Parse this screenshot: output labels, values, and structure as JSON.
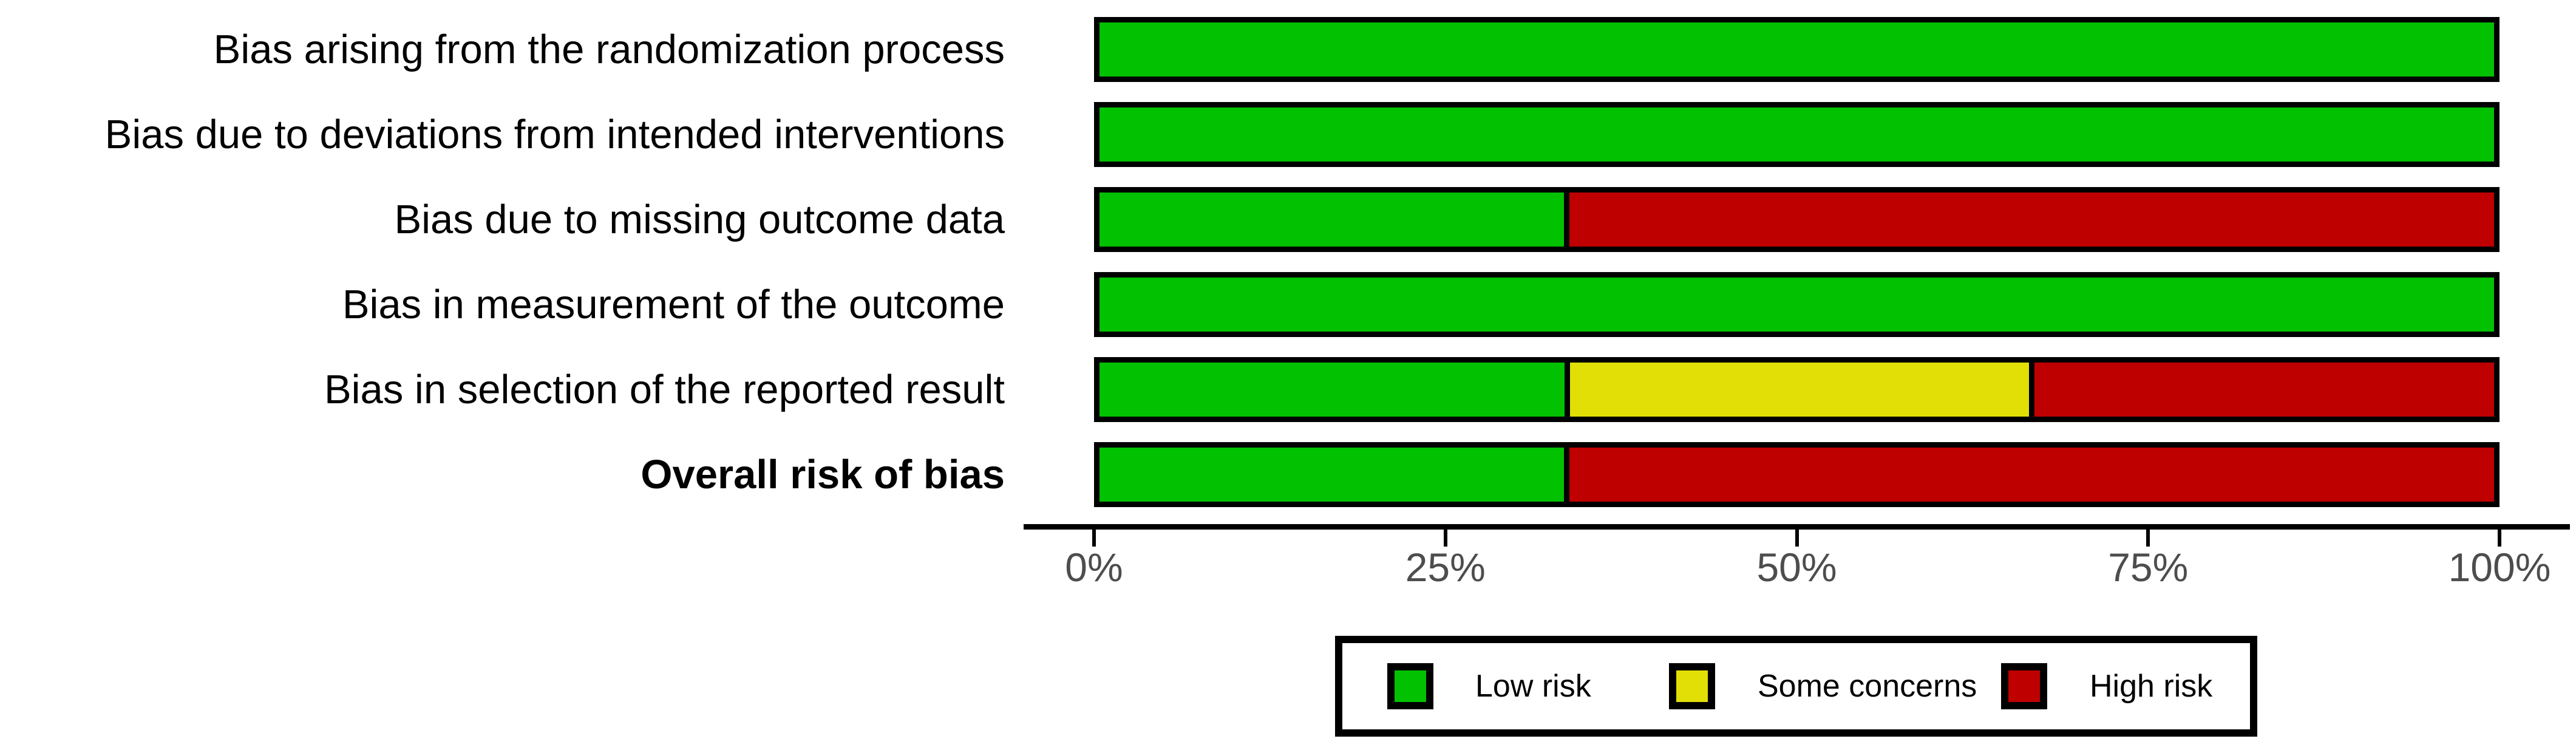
{
  "chart_data": {
    "type": "bar",
    "subtype": "horizontal_stacked_percentage",
    "title": "",
    "categories": [
      {
        "label": "Bias arising from the randomization process",
        "bold": false
      },
      {
        "label": "Bias due to deviations from intended interventions",
        "bold": false
      },
      {
        "label": "Bias due to missing outcome data",
        "bold": false
      },
      {
        "label": "Bias in measurement of the outcome",
        "bold": false
      },
      {
        "label": "Bias in selection of the reported result",
        "bold": false
      },
      {
        "label": "Overall risk of bias",
        "bold": true
      }
    ],
    "series": [
      {
        "name": "Low risk",
        "color": "#02C100",
        "values": [
          100,
          100,
          33.3,
          100,
          33.3,
          33.3
        ]
      },
      {
        "name": "Some concerns",
        "color": "#E2DF07",
        "values": [
          0,
          0,
          0,
          0,
          33.3,
          0
        ]
      },
      {
        "name": "High risk",
        "color": "#BF0000",
        "values": [
          0,
          0,
          66.7,
          0,
          33.3,
          66.7
        ]
      }
    ],
    "x_axis": {
      "tick_labels": [
        "0%",
        "25%",
        "50%",
        "75%",
        "100%"
      ],
      "tick_values": [
        0,
        25,
        50,
        75,
        100
      ],
      "range": [
        0,
        100
      ]
    },
    "legend": {
      "position": "bottom",
      "items": [
        {
          "label": "Low risk",
          "color": "#02C100"
        },
        {
          "label": "Some concerns",
          "color": "#E2DF07"
        },
        {
          "label": "High risk",
          "color": "#BF0000"
        }
      ]
    },
    "grid": false,
    "bar_border_color": "#000000",
    "axis_color": "#000000",
    "tick_label_color": "#4d4d4d"
  }
}
